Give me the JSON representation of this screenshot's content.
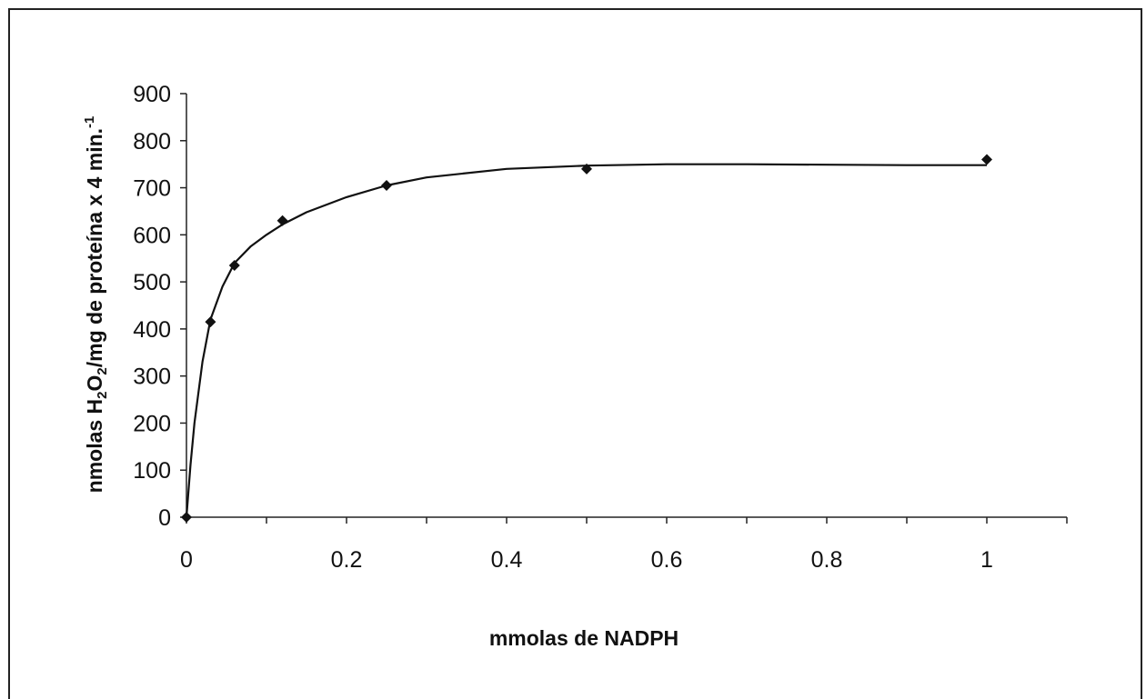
{
  "chart_data": {
    "type": "scatter",
    "title": "",
    "xlabel": "mmolas de NADPH",
    "ylabel": {
      "prefix": "nmolas H",
      "sub1": "2",
      "mid1": "O",
      "sub2": "2",
      "mid2": "/mg de proteína x 4 min.",
      "sup": "-1"
    },
    "xlim": [
      0,
      1.1
    ],
    "ylim": [
      0,
      900
    ],
    "x_ticks": [
      "0",
      "0.2",
      "0.4",
      "0.6",
      "0.8",
      "1"
    ],
    "y_ticks": [
      "0",
      "100",
      "200",
      "300",
      "400",
      "500",
      "600",
      "700",
      "800",
      "900"
    ],
    "grid": false,
    "legend": "none",
    "series": [
      {
        "marker": "diamond",
        "color": "#111111",
        "x": [
          0,
          0.03,
          0.06,
          0.12,
          0.25,
          0.5,
          1.0
        ],
        "y": [
          0,
          415,
          535,
          630,
          705,
          740,
          760
        ]
      }
    ],
    "fit_curve": {
      "color": "#111111",
      "x": [
        0,
        0.005,
        0.01,
        0.02,
        0.03,
        0.045,
        0.06,
        0.08,
        0.1,
        0.12,
        0.15,
        0.2,
        0.25,
        0.3,
        0.4,
        0.5,
        0.6,
        0.7,
        0.8,
        0.9,
        1.0
      ],
      "y": [
        0,
        110,
        200,
        330,
        420,
        490,
        540,
        575,
        600,
        622,
        648,
        680,
        705,
        722,
        740,
        747,
        750,
        750,
        749,
        748,
        748
      ]
    }
  }
}
